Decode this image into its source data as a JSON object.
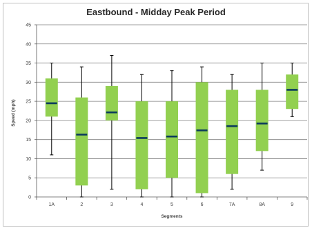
{
  "chart_data": {
    "type": "box",
    "title": "Eastbound - Midday Peak Period",
    "xlabel": "Segments",
    "ylabel": "Speed (mph)",
    "ylim": [
      0,
      45
    ],
    "yticks": [
      0,
      5,
      10,
      15,
      20,
      25,
      30,
      35,
      40,
      45
    ],
    "grid": true,
    "categories": [
      "1A",
      "2",
      "3",
      "4",
      "5",
      "6",
      "7A",
      "8A",
      "9"
    ],
    "whisker_low": [
      11,
      0,
      2,
      0,
      0,
      0,
      2,
      7,
      21
    ],
    "box_low": [
      21,
      3,
      20,
      2,
      5,
      1,
      6,
      12,
      23
    ],
    "median": [
      24.5,
      16.3,
      22.1,
      15.4,
      15.8,
      17.4,
      18.5,
      19.2,
      28
    ],
    "box_high": [
      31,
      26,
      29,
      25,
      25,
      30,
      28,
      28,
      32
    ],
    "whisker_high": [
      35,
      34,
      37,
      32,
      33,
      34,
      32,
      35,
      35
    ],
    "colors": {
      "box": "#92d050",
      "median": "#0b3b5c",
      "whisker": "#000000",
      "grid": "#7f7f7f"
    }
  }
}
